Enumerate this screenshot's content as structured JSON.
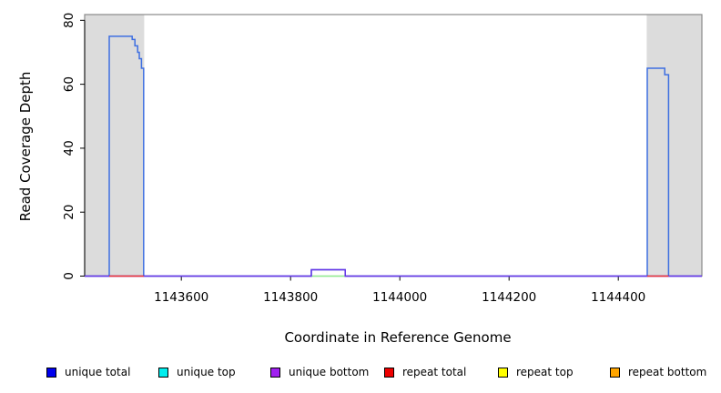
{
  "chart_data": {
    "type": "line",
    "title": "",
    "xlabel": "Coordinate in Reference Genome",
    "ylabel": "Read Coverage Depth",
    "xlim": [
      1143423,
      1144553
    ],
    "ylim": [
      0,
      81.8
    ],
    "x_ticks": [
      1143600,
      1143800,
      1144000,
      1144200,
      1144400
    ],
    "y_ticks": [
      0,
      20,
      40,
      60,
      80
    ],
    "grid": false,
    "legend_position": "bottom",
    "plot_border_color": "#8a8a8a",
    "axis_color": "#000000",
    "shaded_regions": [
      {
        "x0": 1143423,
        "x1": 1143532,
        "color": "#dcdcdc"
      },
      {
        "x0": 1144452,
        "x1": 1144553,
        "color": "#dcdcdc"
      }
    ],
    "series": [
      {
        "name": "unique total",
        "color": "#3e6fe1",
        "segments": [
          [
            [
              1143423,
              0
            ],
            [
              1143468,
              0
            ],
            [
              1143468,
              75
            ],
            [
              1143510,
              75
            ],
            [
              1143510,
              74
            ],
            [
              1143515,
              74
            ],
            [
              1143515,
              72
            ],
            [
              1143520,
              72
            ],
            [
              1143520,
              70
            ],
            [
              1143523,
              70
            ],
            [
              1143523,
              68
            ],
            [
              1143527,
              68
            ],
            [
              1143527,
              65
            ],
            [
              1143531,
              65
            ],
            [
              1143531,
              0
            ],
            [
              1143838,
              0
            ],
            [
              1143838,
              2
            ],
            [
              1143900,
              2
            ],
            [
              1143900,
              0
            ],
            [
              1144453,
              0
            ],
            [
              1144453,
              65
            ],
            [
              1144485,
              65
            ],
            [
              1144485,
              63
            ],
            [
              1144492,
              63
            ],
            [
              1144492,
              0
            ],
            [
              1144553,
              0
            ]
          ]
        ]
      },
      {
        "name": "unique top",
        "color": "#90ee90",
        "segments": [
          [
            [
              1143838,
              0
            ],
            [
              1143900,
              0
            ]
          ]
        ]
      },
      {
        "name": "unique bottom",
        "color": "#6633e6",
        "segments": [
          [
            [
              1143423,
              0
            ],
            [
              1143838,
              0
            ],
            [
              1143838,
              2
            ],
            [
              1143900,
              2
            ],
            [
              1143900,
              0
            ],
            [
              1144553,
              0
            ]
          ]
        ]
      },
      {
        "name": "repeat total",
        "color": "#ee3333",
        "segments": [
          [
            [
              1143468,
              0
            ],
            [
              1143531,
              0
            ]
          ],
          [
            [
              1144453,
              0
            ],
            [
              1144492,
              0
            ]
          ]
        ]
      },
      {
        "name": "repeat top",
        "color": "#ffff00",
        "segments": []
      },
      {
        "name": "repeat bottom",
        "color": "#ffa500",
        "segments": []
      }
    ]
  },
  "legend": {
    "items": [
      {
        "label": "unique total",
        "color": "#0000ee"
      },
      {
        "label": "unique top",
        "color": "#00eeee"
      },
      {
        "label": "unique bottom",
        "color": "#a020f0"
      },
      {
        "label": "repeat total",
        "color": "#ee0000"
      },
      {
        "label": "repeat top",
        "color": "#ffff00"
      },
      {
        "label": "repeat bottom",
        "color": "#ffa500"
      }
    ]
  }
}
